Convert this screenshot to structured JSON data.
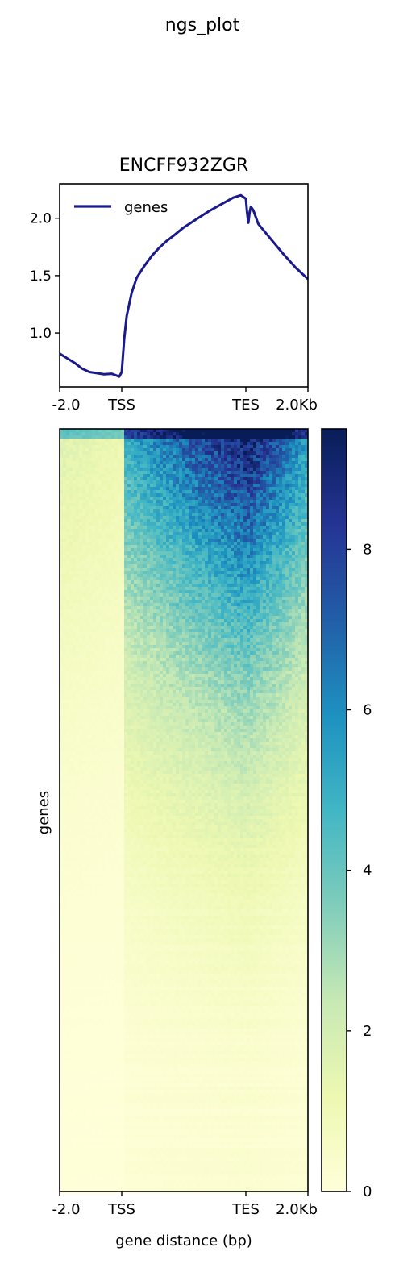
{
  "figure": {
    "suptitle": "ngs_plot"
  },
  "chart_data": [
    {
      "type": "line",
      "title": "ENCFF932ZGR",
      "xlabel": "",
      "ylabel": "",
      "x_tick_labels": [
        "-2.0",
        "TSS",
        "TES",
        "2.0Kb"
      ],
      "y_ticks": [
        1.0,
        1.5,
        2.0
      ],
      "y_tick_labels": [
        "1.0",
        "1.5",
        "2.0"
      ],
      "ylim": [
        0.53,
        2.3
      ],
      "grid": false,
      "legend_position": "top-left",
      "series": [
        {
          "name": "genes",
          "color": "#1a1a8c",
          "x": [
            0.0,
            0.03,
            0.06,
            0.09,
            0.12,
            0.15,
            0.18,
            0.21,
            0.24,
            0.25,
            0.255,
            0.26,
            0.27,
            0.29,
            0.31,
            0.34,
            0.37,
            0.4,
            0.43,
            0.46,
            0.5,
            0.55,
            0.6,
            0.65,
            0.7,
            0.73,
            0.75,
            0.755,
            0.76,
            0.765,
            0.77,
            0.78,
            0.8,
            0.85,
            0.9,
            0.95,
            1.0
          ],
          "y": [
            0.82,
            0.78,
            0.74,
            0.69,
            0.66,
            0.65,
            0.64,
            0.645,
            0.62,
            0.66,
            0.8,
            0.95,
            1.15,
            1.35,
            1.48,
            1.58,
            1.67,
            1.74,
            1.8,
            1.85,
            1.92,
            1.99,
            2.06,
            2.12,
            2.18,
            2.2,
            2.17,
            2.05,
            1.96,
            2.05,
            2.1,
            2.07,
            1.95,
            1.82,
            1.69,
            1.57,
            1.47
          ]
        }
      ]
    },
    {
      "type": "heatmap",
      "title": "",
      "xlabel": "gene distance (bp)",
      "ylabel": "genes",
      "x_tick_labels": [
        "-2.0",
        "TSS",
        "TES",
        "2.0Kb"
      ],
      "colormap": "YlGnBu",
      "colorbar": {
        "vmin": 0,
        "vmax": 9.5,
        "ticks": [
          0,
          2,
          4,
          6,
          8
        ],
        "tick_labels": [
          "0",
          "2",
          "4",
          "6",
          "8"
        ],
        "colors": [
          "#ffffd9",
          "#edf8b1",
          "#c7e9b4",
          "#7fcdbb",
          "#41b6c4",
          "#1d91c0",
          "#225ea8",
          "#253494",
          "#081d58"
        ]
      }
    }
  ]
}
